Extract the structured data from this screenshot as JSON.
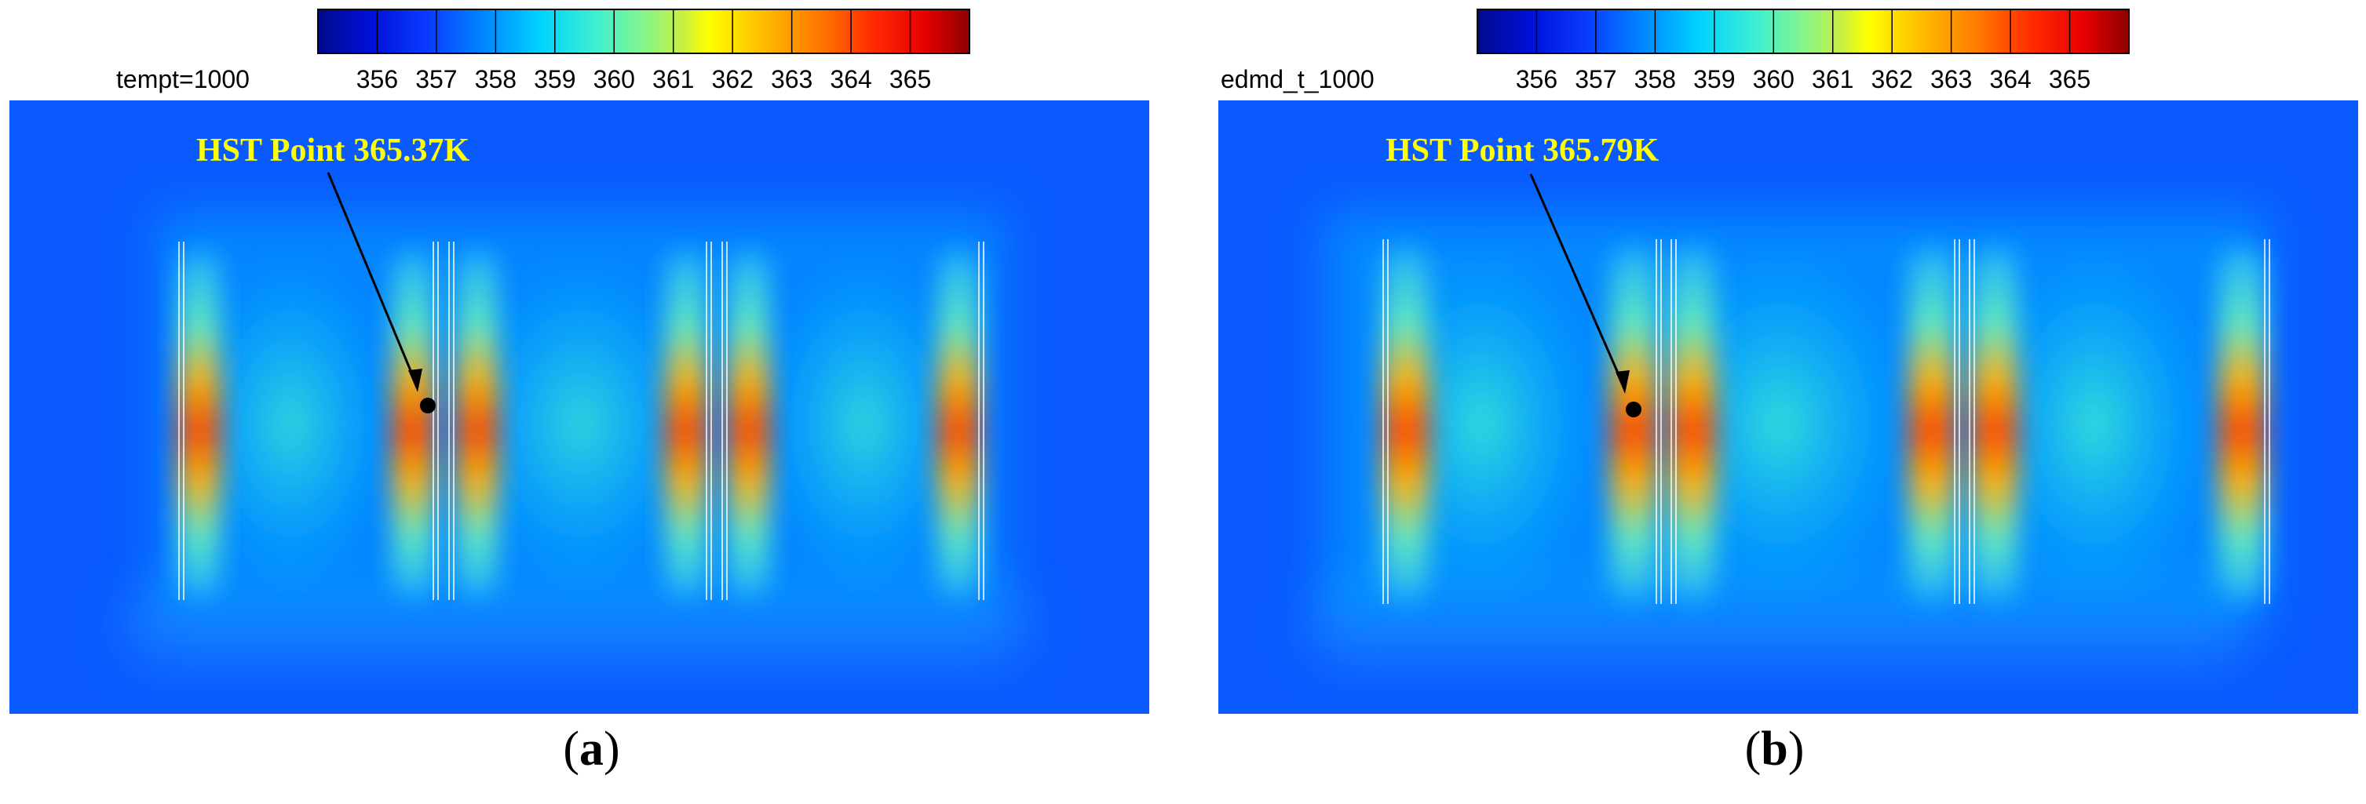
{
  "chart_data": [
    {
      "type": "heatmap",
      "title": "tempt=1000",
      "colorbar": {
        "ticks": [
          356,
          357,
          358,
          359,
          360,
          361,
          362,
          363,
          364,
          365
        ],
        "colors": [
          "#000a8c",
          "#0010d8",
          "#0a3cff",
          "#008cff",
          "#00d2ff",
          "#40f0d0",
          "#86f58a",
          "#c8f040",
          "#ffff00",
          "#ffbe00",
          "#ff7800",
          "#ff2c00",
          "#e80000",
          "#8c0000"
        ]
      },
      "annotation": {
        "label": "HST Point 365.37K",
        "value": 365.37,
        "unit": "K"
      },
      "caption": "a"
    },
    {
      "type": "heatmap",
      "title": "edmd_t_1000",
      "colorbar": {
        "ticks": [
          356,
          357,
          358,
          359,
          360,
          361,
          362,
          363,
          364,
          365
        ],
        "colors": [
          "#000a8c",
          "#0010d8",
          "#0a3cff",
          "#008cff",
          "#00d2ff",
          "#40f0d0",
          "#86f58a",
          "#c8f040",
          "#ffff00",
          "#ffbe00",
          "#ff7800",
          "#ff2c00",
          "#e80000",
          "#8c0000"
        ]
      },
      "annotation": {
        "label": "HST Point 365.79K",
        "value": 365.79,
        "unit": "K"
      },
      "caption": "b"
    }
  ]
}
